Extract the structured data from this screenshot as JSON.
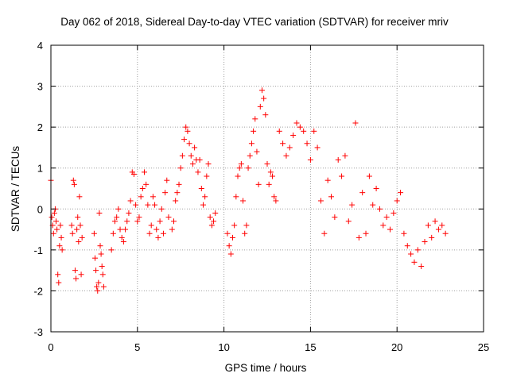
{
  "chart_data": {
    "type": "scatter",
    "title": "Day 062 of 2018, Sidereal Day-to-day VTEC variation (SDTVAR) for receiver mriv",
    "xlabel": "GPS time / hours",
    "ylabel": "SDTVAR / TECUs",
    "xlim": [
      0,
      25
    ],
    "ylim": [
      -3,
      4
    ],
    "xticks": [
      "0",
      "5",
      "10",
      "15",
      "20",
      "25"
    ],
    "yticks": [
      "-3",
      "-2",
      "-1",
      "0",
      "1",
      "2",
      "3",
      "4"
    ],
    "grid": true,
    "marker": "plus",
    "color": "#ff0000",
    "series": [
      {
        "name": "SDTVAR",
        "x": [
          0.0,
          0.05,
          0.1,
          0.15,
          0.2,
          0.25,
          0.3,
          0.35,
          0.4,
          0.45,
          0.5,
          0.55,
          0.6,
          0.65,
          1.2,
          1.25,
          1.3,
          1.35,
          1.4,
          1.45,
          1.5,
          1.55,
          1.6,
          1.65,
          1.7,
          1.75,
          1.8,
          2.5,
          2.55,
          2.6,
          2.65,
          2.7,
          2.75,
          2.8,
          2.85,
          2.9,
          2.95,
          3.0,
          3.05,
          3.5,
          3.6,
          3.7,
          3.8,
          3.9,
          4.0,
          4.1,
          4.2,
          4.3,
          4.4,
          4.5,
          4.6,
          4.7,
          4.8,
          4.9,
          5.0,
          5.1,
          5.2,
          5.3,
          5.4,
          5.5,
          5.6,
          5.7,
          5.8,
          5.9,
          6.0,
          6.1,
          6.2,
          6.3,
          6.4,
          6.5,
          6.6,
          6.7,
          6.8,
          7.0,
          7.1,
          7.2,
          7.3,
          7.4,
          7.5,
          7.6,
          7.7,
          7.8,
          7.9,
          8.0,
          8.1,
          8.2,
          8.3,
          8.4,
          8.5,
          8.6,
          8.7,
          8.8,
          8.9,
          9.0,
          9.1,
          9.2,
          9.3,
          9.4,
          9.5,
          10.2,
          10.3,
          10.4,
          10.5,
          10.6,
          10.7,
          10.8,
          10.9,
          11.0,
          11.1,
          11.2,
          11.3,
          11.4,
          11.5,
          11.6,
          11.7,
          11.8,
          11.9,
          12.0,
          12.1,
          12.2,
          12.3,
          12.4,
          12.5,
          12.6,
          12.7,
          12.8,
          12.9,
          13.0,
          13.2,
          13.4,
          13.6,
          13.8,
          14.0,
          14.2,
          14.4,
          14.6,
          14.8,
          15.0,
          15.2,
          15.4,
          15.6,
          15.8,
          16.0,
          16.2,
          16.4,
          16.6,
          16.8,
          17.0,
          17.2,
          17.4,
          17.6,
          17.8,
          18.0,
          18.2,
          18.4,
          18.6,
          18.8,
          19.0,
          19.2,
          19.4,
          19.6,
          19.8,
          20.0,
          20.2,
          20.4,
          20.6,
          20.8,
          21.0,
          21.2,
          21.4,
          21.6,
          21.8,
          22.0,
          22.2,
          22.4,
          22.6,
          22.8
        ],
        "y": [
          0.7,
          -0.2,
          -0.4,
          -0.6,
          -0.1,
          0.0,
          -0.3,
          -0.5,
          -1.6,
          -1.8,
          -0.9,
          -0.4,
          -0.7,
          -1.0,
          -0.4,
          -0.6,
          0.7,
          0.6,
          -1.5,
          -1.7,
          -0.5,
          -0.2,
          -0.8,
          0.3,
          -0.4,
          -1.6,
          -0.7,
          -0.6,
          -1.2,
          -1.5,
          -1.9,
          -2.0,
          -1.8,
          -0.1,
          -0.9,
          -1.1,
          -1.4,
          -1.6,
          -1.9,
          -1.0,
          -0.6,
          -0.3,
          -0.2,
          0.0,
          -0.5,
          -0.7,
          -0.8,
          -0.5,
          -0.3,
          -0.1,
          0.2,
          0.9,
          0.85,
          0.1,
          -0.3,
          -0.2,
          0.3,
          0.5,
          0.9,
          0.6,
          0.1,
          -0.6,
          -0.4,
          0.3,
          0.1,
          -0.5,
          -0.7,
          -0.3,
          0.0,
          -0.6,
          0.4,
          0.7,
          -0.2,
          -0.5,
          -0.3,
          0.2,
          0.4,
          0.6,
          1.0,
          1.3,
          1.7,
          2.0,
          1.9,
          1.6,
          1.3,
          1.1,
          1.5,
          1.2,
          0.9,
          1.2,
          0.5,
          0.1,
          0.3,
          0.8,
          1.1,
          -0.2,
          -0.4,
          -0.3,
          -0.1,
          -0.6,
          -0.9,
          -1.1,
          -0.7,
          -0.4,
          0.3,
          0.8,
          1.0,
          1.1,
          0.2,
          -0.6,
          -0.4,
          1.0,
          1.3,
          1.6,
          1.9,
          2.2,
          1.4,
          0.6,
          2.5,
          2.9,
          2.7,
          2.3,
          1.1,
          0.6,
          0.9,
          0.8,
          0.3,
          0.2,
          1.9,
          1.6,
          1.3,
          1.5,
          1.8,
          2.1,
          2.0,
          1.9,
          1.6,
          1.2,
          1.9,
          1.5,
          0.2,
          -0.6,
          0.7,
          0.3,
          -0.2,
          1.2,
          0.8,
          1.3,
          -0.3,
          0.1,
          2.1,
          -0.7,
          0.4,
          -0.6,
          0.8,
          0.1,
          0.5,
          0.0,
          -0.4,
          -0.2,
          -0.5,
          -0.1,
          0.2,
          0.4,
          -0.6,
          -0.9,
          -1.1,
          -1.3,
          -1.0,
          -1.4,
          -0.8,
          -0.4,
          -0.7,
          -0.3,
          -0.5,
          -0.4,
          -0.6
        ]
      }
    ]
  }
}
